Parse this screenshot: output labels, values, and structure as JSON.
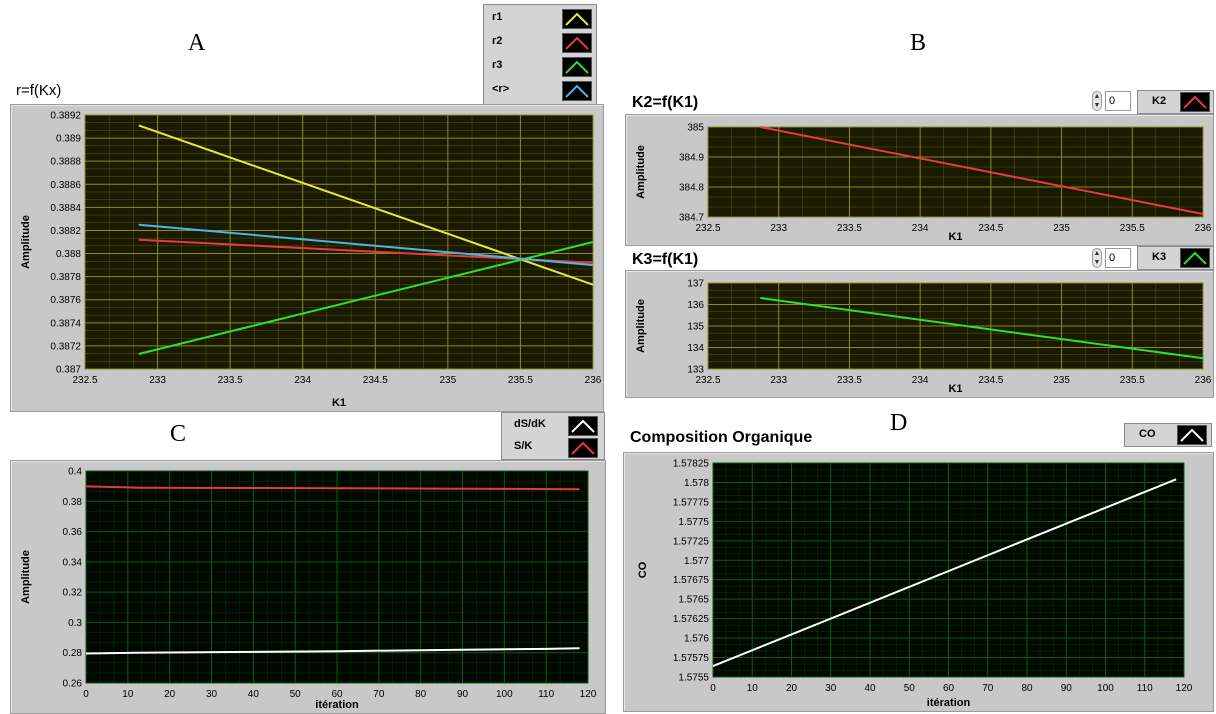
{
  "labels": {
    "a": "A",
    "b": "B",
    "c": "C",
    "d": "D"
  },
  "colors": {
    "yellow": "#e8e83a",
    "red": "#e83a3a",
    "green": "#2ee02e",
    "blue": "#4ab4ec",
    "white": "#ffffff",
    "plotYellow": "#1a1a00",
    "gridYellow": "#8b8b1e",
    "plotGreen": "#000800",
    "gridGreen": "#0f5a0f"
  },
  "chartA": {
    "title": "r=f(Kx)",
    "legend": [
      {
        "label": "r1",
        "color": "#e8e83a"
      },
      {
        "label": "r2",
        "color": "#e83a3a"
      },
      {
        "label": "r3",
        "color": "#2ee02e"
      },
      {
        "label": "<r>",
        "color": "#4ab4ec"
      }
    ]
  },
  "chartB1": {
    "title": "K2=f(K1)",
    "legend": "K2",
    "spinner": "0"
  },
  "chartB2": {
    "title": "K3=f(K1)",
    "legend": "K3",
    "spinner": "0"
  },
  "chartC": {
    "legend": [
      {
        "label": "dS/dK",
        "color": "#ffffff"
      },
      {
        "label": "S/K",
        "color": "#e83a3a"
      }
    ]
  },
  "chartD": {
    "title": "Composition Organique",
    "legend": "CO"
  },
  "chart_data": [
    {
      "id": "A",
      "type": "line",
      "title": "r=f(Kx)",
      "xlabel": "K1",
      "ylabel": "Amplitude",
      "xlim": [
        232.5,
        236
      ],
      "ylim": [
        0.387,
        0.3892
      ],
      "xticks": [
        232.5,
        233,
        233.5,
        234,
        234.5,
        235,
        235.5,
        236
      ],
      "xtickLabels": [
        "232.5",
        "233",
        "233.5",
        "234",
        "234.5",
        "235",
        "235.5",
        "236"
      ],
      "yticks": [
        0.387,
        0.3872,
        0.3874,
        0.3876,
        0.3878,
        0.388,
        0.3882,
        0.3884,
        0.3886,
        0.3888,
        0.389,
        0.3892
      ],
      "ytickLabels": [
        "0.387",
        "0.3872",
        "0.3874",
        "0.3876",
        "0.3878",
        "0.388",
        "0.3882",
        "0.3884",
        "0.3886",
        "0.3888",
        "0.389",
        "0.3892"
      ],
      "grid": true,
      "legend": "top-right",
      "series": [
        {
          "name": "r1",
          "color": "#e8e83a",
          "x": [
            232.87,
            236
          ],
          "y": [
            0.38911,
            0.38773
          ]
        },
        {
          "name": "r2",
          "color": "#e83a3a",
          "x": [
            232.87,
            236
          ],
          "y": [
            0.38812,
            0.38792
          ]
        },
        {
          "name": "r3",
          "color": "#2ee02e",
          "x": [
            232.87,
            236
          ],
          "y": [
            0.38713,
            0.3881
          ]
        },
        {
          "name": "<r>",
          "color": "#4ab4ec",
          "x": [
            232.87,
            236
          ],
          "y": [
            0.38825,
            0.3879
          ]
        }
      ]
    },
    {
      "id": "B1",
      "type": "line",
      "title": "K2=f(K1)",
      "xlabel": "K1",
      "ylabel": "Amplitude",
      "xlim": [
        232.5,
        236
      ],
      "ylim": [
        384.7,
        385
      ],
      "xticks": [
        232.5,
        233,
        233.5,
        234,
        234.5,
        235,
        235.5,
        236
      ],
      "xtickLabels": [
        "232.5",
        "233",
        "233.5",
        "234",
        "234.5",
        "235",
        "235.5",
        "236"
      ],
      "yticks": [
        384.7,
        384.8,
        384.9,
        385
      ],
      "ytickLabels": [
        "384.7",
        "384.8",
        "384.9",
        "385"
      ],
      "grid": true,
      "legend": "top-right",
      "series": [
        {
          "name": "K2",
          "color": "#e83a3a",
          "x": [
            232.87,
            236
          ],
          "y": [
            385.0,
            384.71
          ]
        }
      ]
    },
    {
      "id": "B2",
      "type": "line",
      "title": "K3=f(K1)",
      "xlabel": "K1",
      "ylabel": "Amplitude",
      "xlim": [
        232.5,
        236
      ],
      "ylim": [
        133,
        137
      ],
      "xticks": [
        232.5,
        233,
        233.5,
        234,
        234.5,
        235,
        235.5,
        236
      ],
      "xtickLabels": [
        "232.5",
        "233",
        "233.5",
        "234",
        "234.5",
        "235",
        "235.5",
        "236"
      ],
      "yticks": [
        133,
        134,
        135,
        136,
        137
      ],
      "ytickLabels": [
        "133",
        "134",
        "135",
        "136",
        "137"
      ],
      "grid": true,
      "legend": "top-right",
      "series": [
        {
          "name": "K3",
          "color": "#2ee02e",
          "x": [
            232.87,
            236
          ],
          "y": [
            136.3,
            133.5
          ]
        }
      ]
    },
    {
      "id": "C",
      "type": "line",
      "title": "",
      "xlabel": "itération",
      "ylabel": "Amplitude",
      "xlim": [
        0,
        120
      ],
      "ylim": [
        0.26,
        0.4
      ],
      "xticks": [
        0,
        10,
        20,
        30,
        40,
        50,
        60,
        70,
        80,
        90,
        100,
        110,
        120
      ],
      "xtickLabels": [
        "0",
        "10",
        "20",
        "30",
        "40",
        "50",
        "60",
        "70",
        "80",
        "90",
        "100",
        "110",
        "120"
      ],
      "yticks": [
        0.26,
        0.28,
        0.3,
        0.32,
        0.34,
        0.36,
        0.38,
        0.4
      ],
      "ytickLabels": [
        "0.26",
        "0.28",
        "0.3",
        "0.32",
        "0.34",
        "0.36",
        "0.38",
        "0.4"
      ],
      "grid": true,
      "legend": "top-right",
      "series": [
        {
          "name": "dS/dK",
          "color": "#ffffff",
          "x": [
            0,
            12,
            35,
            60,
            85,
            110,
            118
          ],
          "y": [
            0.2795,
            0.28,
            0.2805,
            0.281,
            0.2818,
            0.2825,
            0.2829
          ]
        },
        {
          "name": "S/K",
          "color": "#e83a3a",
          "x": [
            0,
            13,
            70,
            118
          ],
          "y": [
            0.3898,
            0.389,
            0.3885,
            0.388
          ]
        }
      ]
    },
    {
      "id": "D",
      "type": "line",
      "title": "Composition Organique",
      "xlabel": "itération",
      "ylabel": "CO",
      "xlim": [
        0,
        120
      ],
      "ylim": [
        1.5755,
        1.57825
      ],
      "xticks": [
        0,
        10,
        20,
        30,
        40,
        50,
        60,
        70,
        80,
        90,
        100,
        110,
        120
      ],
      "xtickLabels": [
        "0",
        "10",
        "20",
        "30",
        "40",
        "50",
        "60",
        "70",
        "80",
        "90",
        "100",
        "110",
        "120"
      ],
      "yticks": [
        1.5755,
        1.57575,
        1.576,
        1.57625,
        1.5765,
        1.57675,
        1.577,
        1.57725,
        1.5775,
        1.57775,
        1.578,
        1.57825
      ],
      "ytickLabels": [
        "1.5755",
        "1.57575",
        "1.576",
        "1.57625",
        "1.5765",
        "1.57675",
        "1.577",
        "1.57725",
        "1.5775",
        "1.57775",
        "1.578",
        "1.57825"
      ],
      "grid": true,
      "legend": "top-right",
      "series": [
        {
          "name": "CO",
          "color": "#ffffff",
          "x": [
            0,
            118
          ],
          "y": [
            1.57564,
            1.57804
          ]
        }
      ]
    }
  ]
}
